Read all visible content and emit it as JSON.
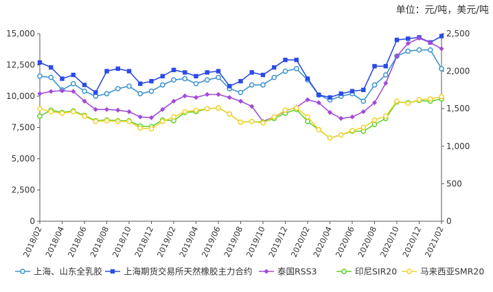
{
  "unit_label": "单位：元/吨，美元/吨",
  "colors": {
    "shandong": "#3A93CF",
    "shfe": "#2B4BE6",
    "thai": "#A24BD6",
    "indo": "#5FD12A",
    "malay": "#F2D22E"
  },
  "chart_data": {
    "type": "line",
    "x": [
      "2018/02",
      "2018/03",
      "2018/04",
      "2018/05",
      "2018/06",
      "2018/07",
      "2018/08",
      "2018/09",
      "2018/10",
      "2018/11",
      "2018/12",
      "2019/01",
      "2019/02",
      "2019/03",
      "2019/04",
      "2019/05",
      "2019/06",
      "2019/07",
      "2019/08",
      "2019/09",
      "2019/10",
      "2019/11",
      "2019/12",
      "2020/01",
      "2020/02",
      "2020/03",
      "2020/04",
      "2020/05",
      "2020/06",
      "2020/07",
      "2020/08",
      "2020/09",
      "2020/10",
      "2020/11",
      "2020/12",
      "2021/01",
      "2021/02"
    ],
    "tick_labels": [
      "2018/02",
      "2018/04",
      "2018/06",
      "2018/08",
      "2018/10",
      "2018/12",
      "2019/02",
      "2019/04",
      "2019/06",
      "2019/08",
      "2019/10",
      "2019/12",
      "2020/02",
      "2020/04",
      "2020/06",
      "2020/08",
      "2020/10",
      "2020/12",
      "2021/02"
    ],
    "y_left": {
      "min": 0,
      "max": 15000,
      "ticks": [
        "0",
        "2,500",
        "5,000",
        "7,500",
        "10,000",
        "12,500",
        "15,000"
      ]
    },
    "y_right": {
      "min": 0,
      "max": 2500,
      "ticks": [
        "0",
        "500",
        "1,000",
        "1,500",
        "2,000",
        "2,500"
      ]
    },
    "grid": false,
    "legend_position": "bottom",
    "series": [
      {
        "name": "上海、山东全乳胶",
        "axis": "left",
        "color_key": "shandong",
        "marker": "circle",
        "values": [
          11600,
          11500,
          10500,
          11000,
          10400,
          10000,
          10200,
          10600,
          10800,
          10200,
          10400,
          10900,
          11300,
          11400,
          11000,
          11300,
          11500,
          10600,
          10300,
          10900,
          10900,
          11500,
          12000,
          12200,
          11300,
          10100,
          9700,
          10000,
          10200,
          9600,
          10900,
          11700,
          13200,
          13600,
          13700,
          13700,
          12200
        ]
      },
      {
        "name": "上海期货交易所天然橡胶主力合约",
        "axis": "left",
        "color_key": "shfe",
        "marker": "square",
        "values": [
          12700,
          12300,
          11400,
          11700,
          10900,
          10300,
          12000,
          12200,
          12000,
          11000,
          11200,
          11600,
          12100,
          11900,
          11600,
          11900,
          12000,
          10800,
          11200,
          11900,
          11700,
          12300,
          12900,
          12900,
          11400,
          10100,
          9900,
          10200,
          10400,
          10500,
          12400,
          12400,
          14500,
          14600,
          14700,
          14300,
          14800
        ]
      },
      {
        "name": "泰国RSS3",
        "axis": "right",
        "color_key": "thai",
        "marker": "diamond",
        "values": [
          1700,
          1730,
          1740,
          1730,
          1600,
          1490,
          1490,
          1480,
          1460,
          1390,
          1380,
          1490,
          1600,
          1670,
          1650,
          1690,
          1690,
          1650,
          1600,
          1530,
          1330,
          1390,
          1470,
          1520,
          1620,
          1580,
          1450,
          1370,
          1390,
          1460,
          1580,
          1840,
          2200,
          2370,
          2440,
          2380,
          2300
        ]
      },
      {
        "name": "印尼SIR20",
        "axis": "right",
        "color_key": "indo",
        "marker": "circle",
        "values": [
          1400,
          1480,
          1450,
          1470,
          1410,
          1340,
          1350,
          1340,
          1340,
          1270,
          1260,
          1350,
          1340,
          1450,
          1460,
          1500,
          1510,
          1430,
          1320,
          1330,
          1320,
          1370,
          1440,
          1490,
          1330,
          1220,
          1110,
          1150,
          1200,
          1200,
          1290,
          1370,
          1590,
          1580,
          1610,
          1600,
          1630
        ]
      },
      {
        "name": "马来西亚SMR20",
        "axis": "right",
        "color_key": "malay",
        "marker": "circle",
        "values": [
          1500,
          1460,
          1440,
          1460,
          1400,
          1330,
          1340,
          1330,
          1330,
          1240,
          1230,
          1330,
          1390,
          1460,
          1480,
          1500,
          1510,
          1430,
          1320,
          1330,
          1310,
          1390,
          1480,
          1510,
          1390,
          1220,
          1110,
          1150,
          1210,
          1250,
          1350,
          1400,
          1600,
          1570,
          1620,
          1630,
          1660
        ]
      }
    ]
  }
}
